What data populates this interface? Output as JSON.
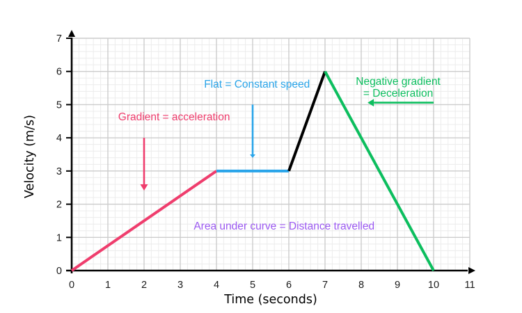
{
  "page": {
    "background": "#ffffff"
  },
  "colors": {
    "axis": "#000000",
    "grid_major": "#cccccc",
    "grid_minor": "#ececec",
    "tick_text": "#1a1a1a"
  },
  "chart_data": {
    "type": "line",
    "title": "",
    "xlabel": "Time (seconds)",
    "ylabel": "Velocity (m/s)",
    "xlim": [
      0,
      11
    ],
    "ylim": [
      0,
      7
    ],
    "x_ticks": [
      0,
      1,
      2,
      3,
      4,
      5,
      6,
      7,
      8,
      9,
      10,
      11
    ],
    "y_ticks": [
      0,
      1,
      2,
      3,
      4,
      5,
      6,
      7
    ],
    "grid": {
      "major_step": 1,
      "minor_step": 0.2
    },
    "series": [
      {
        "name": "acceleration",
        "color": "#EF3D6D",
        "points": [
          [
            0,
            0
          ],
          [
            4,
            3
          ]
        ]
      },
      {
        "name": "constant-speed",
        "color": "#29A4E9",
        "points": [
          [
            4,
            3
          ],
          [
            6,
            3
          ]
        ]
      },
      {
        "name": "acceleration-2",
        "color": "#000000",
        "points": [
          [
            6,
            3
          ],
          [
            7,
            6
          ]
        ]
      },
      {
        "name": "deceleration",
        "color": "#0CBE5E",
        "points": [
          [
            7,
            6
          ],
          [
            10,
            0
          ]
        ]
      }
    ],
    "annotations": [
      {
        "name": "gradient-acceleration",
        "text": "Gradient = acceleration",
        "color": "#EF3D6D",
        "x": 2.83,
        "y": 4.63,
        "arrow": {
          "from": [
            2,
            4.0
          ],
          "to": [
            2,
            2.6
          ],
          "head": [
            9,
            5.5
          ]
        }
      },
      {
        "name": "flat-constant-speed",
        "text": "Flat = Constant speed",
        "color": "#29A4E9",
        "x": 5.12,
        "y": 5.62,
        "arrow": {
          "from": [
            5,
            5.0
          ],
          "to": [
            5,
            3.5
          ],
          "head": [
            5,
            4
          ]
        }
      },
      {
        "name": "negative-gradient-deceleration",
        "lines": [
          "Negative gradient",
          "= Deceleration"
        ],
        "color": "#0CBE5E",
        "x": 9.02,
        "y": 5.52,
        "arrow": {
          "from": [
            10.0,
            5.06
          ],
          "to": [
            8.35,
            5.06
          ],
          "head": [
            9,
            5.5
          ]
        }
      },
      {
        "name": "area-under-curve",
        "text": "Area under curve = Distance travelled",
        "color": "#9C59F2",
        "x": 5.87,
        "y": 1.34,
        "arrow": null
      }
    ]
  }
}
